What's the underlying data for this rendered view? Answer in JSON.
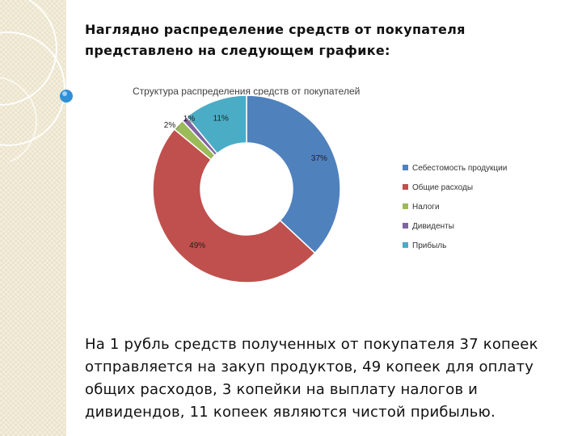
{
  "slide": {
    "heading": "Наглядно распределение средств от покупателя представлено на следующем графике:",
    "body_text": "На 1 рубль средств полученных от покупателя 37 копеек отправляется на закуп продуктов, 49 копеек для оплату общих расходов, 3 копейки на выплату налогов и дивидендов,  11 копеек являются чистой прибылью."
  },
  "chart_data": {
    "type": "pie",
    "style": "doughnut",
    "title": "Структура распределения средств от покупателей",
    "legend_position": "right",
    "categories": [
      "Себестомость  продукции",
      "Общие расходы",
      "Налоги",
      "Дивиденты",
      "Прибыль"
    ],
    "values": [
      37,
      49,
      2,
      1,
      11
    ],
    "labels": [
      "37%",
      "49%",
      "2%",
      "1%",
      "11%"
    ],
    "colors": [
      "#4f81bd",
      "#c0504d",
      "#9bbb59",
      "#8064a2",
      "#4bacc6"
    ]
  }
}
